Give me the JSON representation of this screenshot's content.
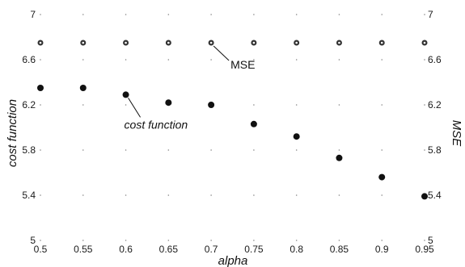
{
  "chart_data": {
    "type": "scatter",
    "x": [
      0.5,
      0.55,
      0.6,
      0.65,
      0.7,
      0.75,
      0.8,
      0.85,
      0.9,
      0.95
    ],
    "x_tick_labels": [
      "0.5",
      "0.55",
      "0.6",
      "0.65",
      "0.7",
      "0.75",
      "0.8",
      "0.85",
      "0.9",
      "0.95"
    ],
    "xlim": [
      0.5,
      0.95
    ],
    "xlabel": "alpha",
    "ylabel_left": "cost function",
    "ylabel_right": "MSE",
    "ylim": [
      5,
      7
    ],
    "y_ticks": [
      5,
      5.4,
      5.8,
      6.2,
      6.6,
      7
    ],
    "y_tick_labels": [
      "5",
      "5.4",
      "5.8",
      "6.2",
      "6.6",
      "7"
    ],
    "grid": "dotted",
    "series": [
      {
        "name": "cost function",
        "axis": "left",
        "values": [
          6.35,
          6.35,
          6.29,
          6.22,
          6.2,
          6.03,
          5.92,
          5.73,
          5.56,
          5.39
        ],
        "color": "#111111"
      },
      {
        "name": "MSE",
        "axis": "right",
        "values": [
          6.75,
          6.75,
          6.75,
          6.75,
          6.75,
          6.75,
          6.75,
          6.75,
          6.75,
          6.75
        ],
        "color": "#333333"
      }
    ],
    "annotations": [
      {
        "text": "MSE",
        "series": "MSE",
        "point_index": 4
      },
      {
        "text": "cost function",
        "series": "cost function",
        "point_index": 2
      }
    ]
  }
}
